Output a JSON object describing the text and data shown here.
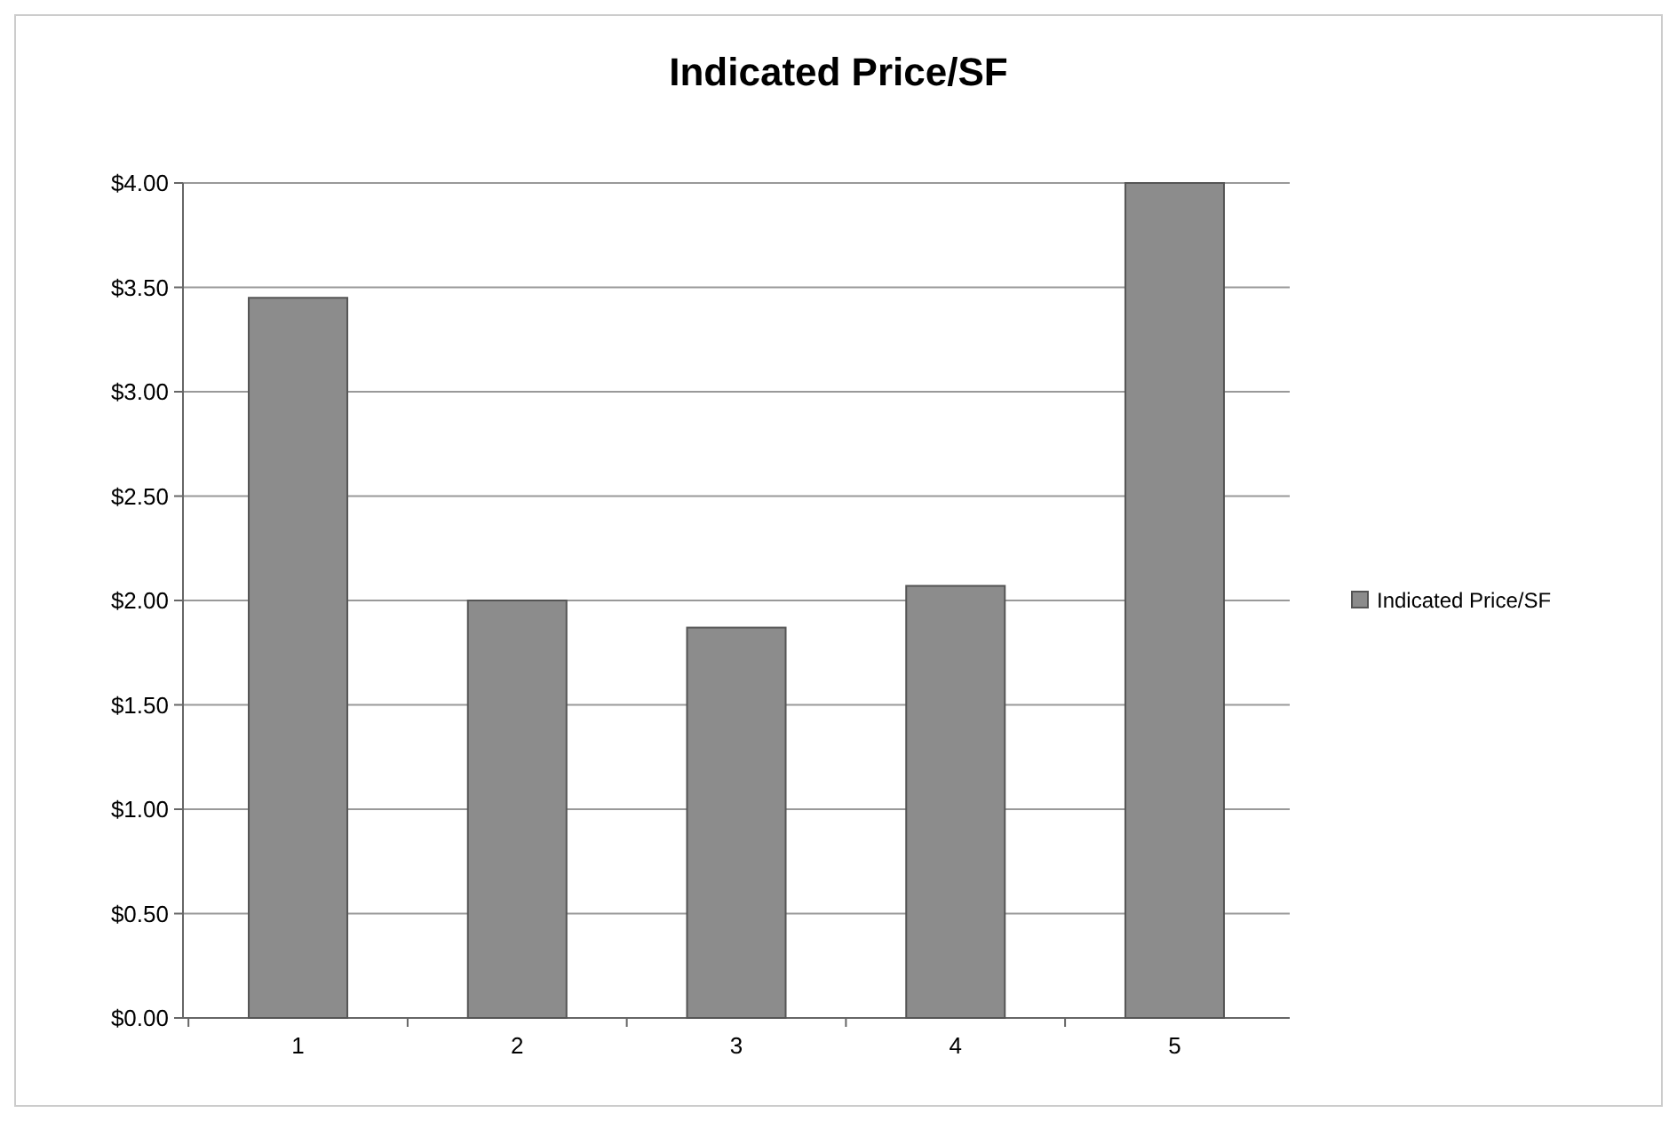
{
  "chart_data": {
    "type": "bar",
    "title": "Indicated Price/SF",
    "categories": [
      "1",
      "2",
      "3",
      "4",
      "5"
    ],
    "series": [
      {
        "name": "Indicated Price/SF",
        "color": "#8c8c8c",
        "values": [
          3.45,
          2.0,
          1.87,
          2.07,
          4.0
        ]
      }
    ],
    "ylim": [
      0,
      4
    ],
    "yticks": [
      {
        "value": 0,
        "label": "$0.00"
      },
      {
        "value": 0.5,
        "label": "$0.50"
      },
      {
        "value": 1,
        "label": "$1.00"
      },
      {
        "value": 1.5,
        "label": "$1.50"
      },
      {
        "value": 2,
        "label": "$2.00"
      },
      {
        "value": 2.5,
        "label": "$2.50"
      },
      {
        "value": 3,
        "label": "$3.00"
      },
      {
        "value": 3.5,
        "label": "$3.50"
      },
      {
        "value": 4,
        "label": "$4.00"
      }
    ],
    "grid": "y",
    "legend": "right"
  }
}
